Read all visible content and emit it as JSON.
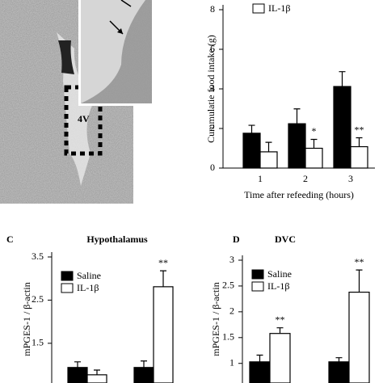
{
  "micrograph": {
    "label": "4V"
  },
  "chart_data": [
    {
      "type": "bar",
      "ylabel": "Cummulatie food intake (g)",
      "xlabel": "Time after refeeding (hours)",
      "categories": [
        "1",
        "2",
        "3"
      ],
      "series": [
        {
          "color": "#000000",
          "values": [
            1.76,
            2.24,
            4.12
          ],
          "errors": [
            0.4,
            0.75,
            0.75
          ]
        },
        {
          "name": "IL-1β",
          "color": "#ffffff",
          "values": [
            0.82,
            1.0,
            1.08
          ],
          "errors": [
            0.48,
            0.45,
            0.45
          ],
          "annotations": [
            null,
            "*",
            "**"
          ]
        }
      ],
      "ylim": [
        0,
        8
      ],
      "yticks": [
        0,
        2,
        4,
        6,
        8
      ]
    },
    {
      "type": "bar",
      "panel": "C",
      "title": "Hypothalamus",
      "ylabel": "mPGES-1 / β-actin",
      "categories": [
        null,
        null
      ],
      "series": [
        {
          "name": "Saline",
          "color": "#000000",
          "values": [
            0.94,
            0.94
          ],
          "errors": [
            0.13,
            0.15
          ]
        },
        {
          "name": "IL-1β",
          "color": "#ffffff",
          "values": [
            0.77,
            2.81
          ],
          "errors": [
            0.11,
            0.37
          ],
          "annotations": [
            null,
            "**"
          ]
        }
      ],
      "ylim": [
        0.58,
        3.5
      ],
      "yticks": [
        1.5,
        2.5,
        3.5
      ]
    },
    {
      "type": "bar",
      "panel": "D",
      "title": "DVC",
      "ylabel": "mPGES-1 / β-actin",
      "categories": [
        null,
        null
      ],
      "series": [
        {
          "name": "Saline",
          "color": "#000000",
          "values": [
            1.03,
            1.03
          ],
          "errors": [
            0.13,
            0.08
          ]
        },
        {
          "name": "IL-1β",
          "color": "#ffffff",
          "values": [
            1.58,
            2.38
          ],
          "errors": [
            0.11,
            0.43
          ],
          "annotations": [
            "**",
            "**"
          ]
        }
      ],
      "ylim": [
        0.62,
        3
      ],
      "yticks": [
        1,
        1.5,
        2,
        2.5,
        3
      ]
    }
  ]
}
